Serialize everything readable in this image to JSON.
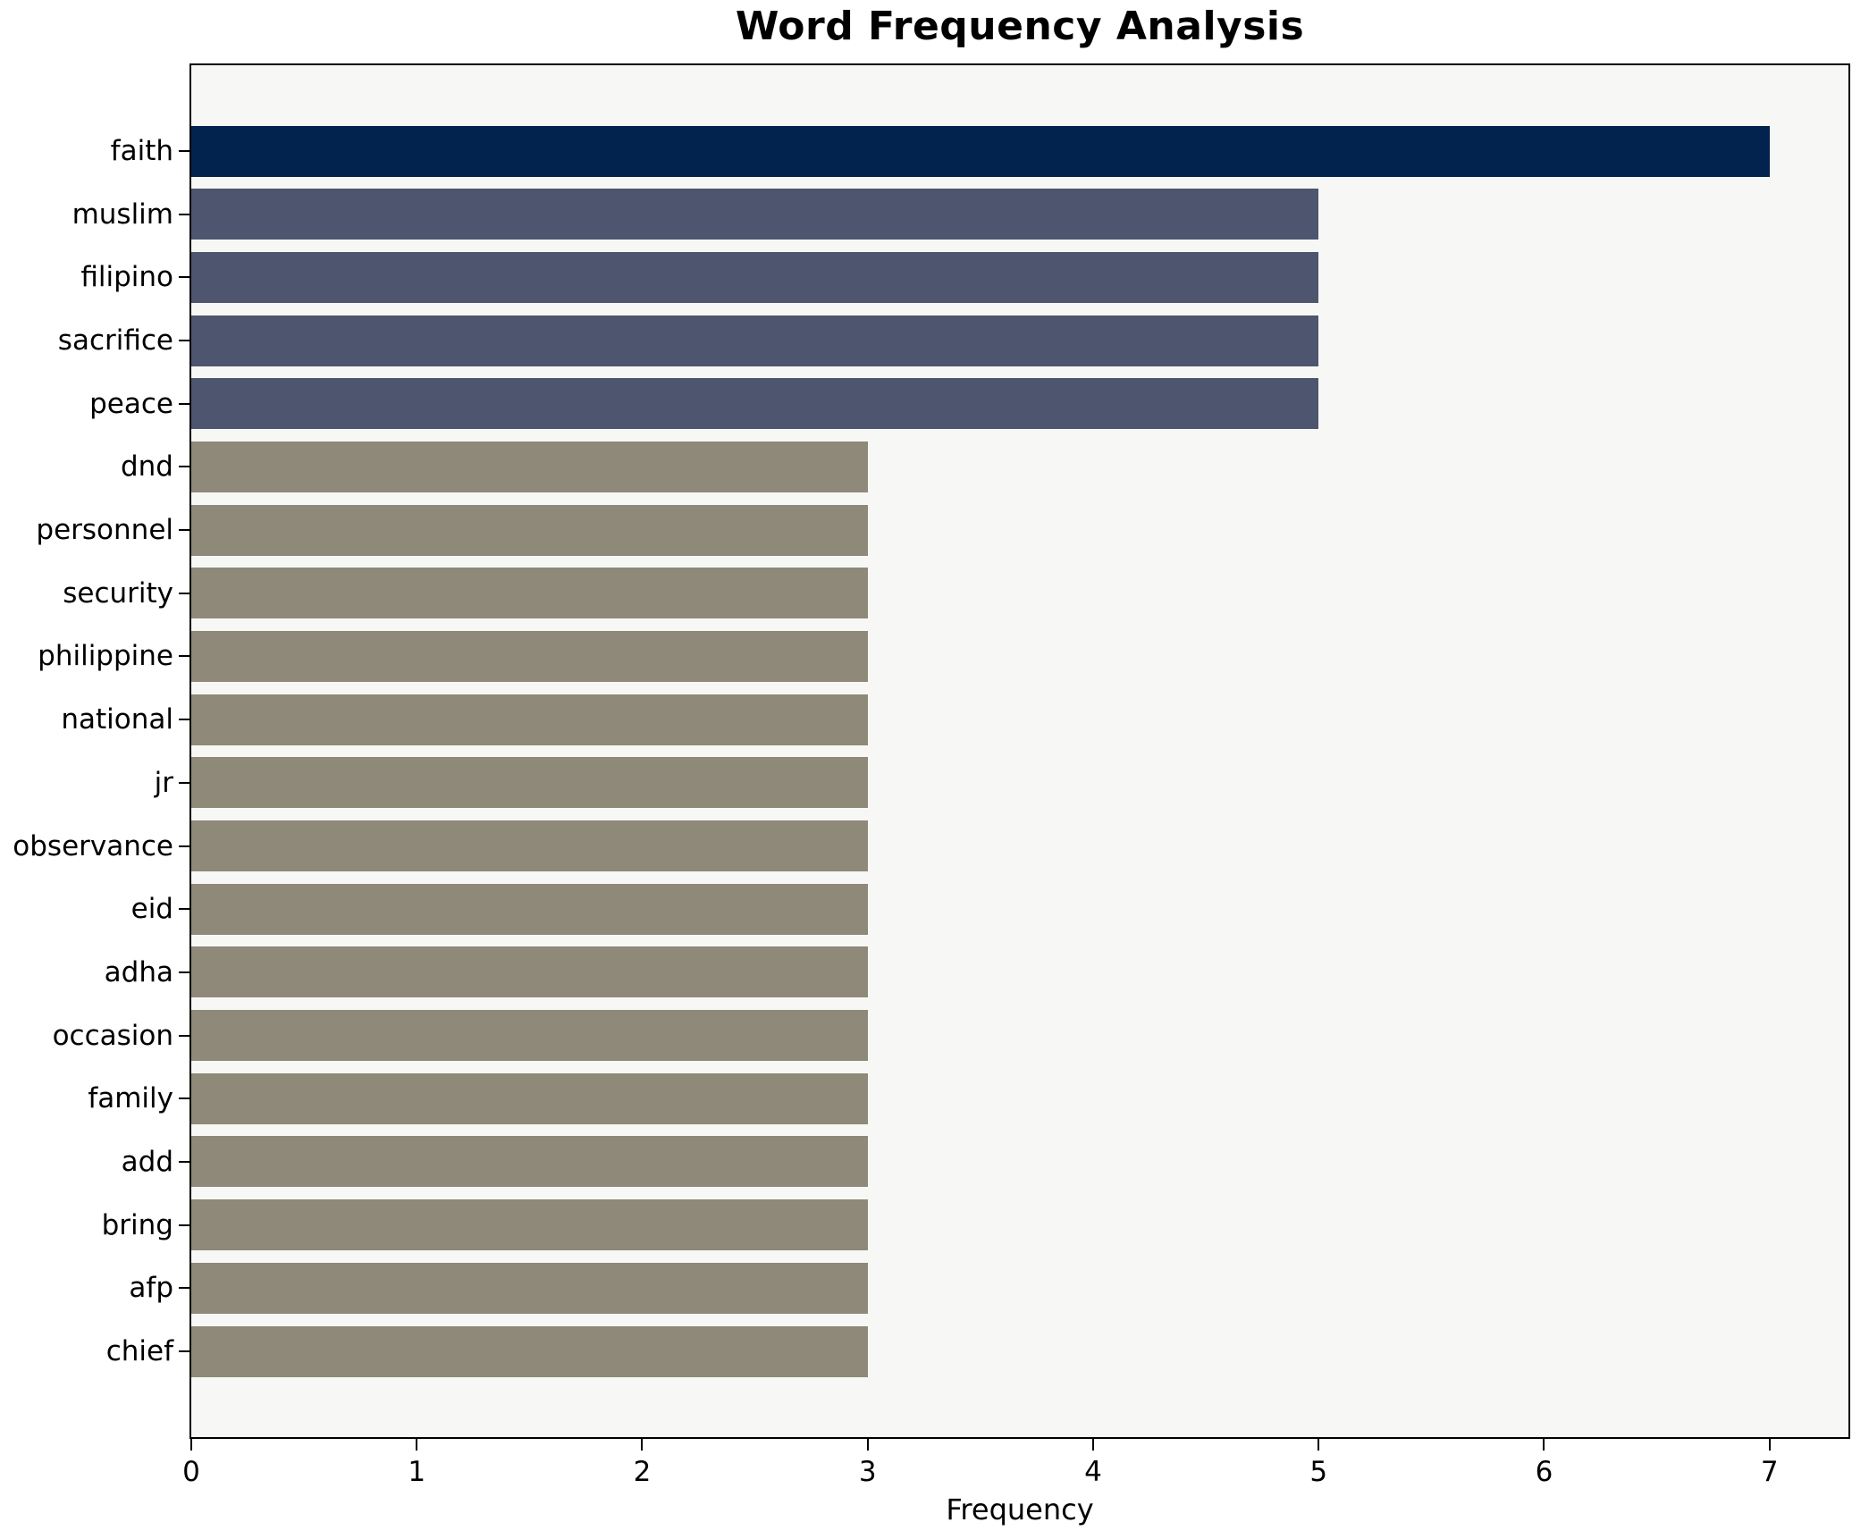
{
  "chart_data": {
    "type": "bar",
    "orientation": "horizontal",
    "title": "Word Frequency Analysis",
    "xlabel": "Frequency",
    "ylabel": "",
    "categories": [
      "faith",
      "muslim",
      "filipino",
      "sacrifice",
      "peace",
      "dnd",
      "personnel",
      "security",
      "philippine",
      "national",
      "jr",
      "observance",
      "eid",
      "adha",
      "occasion",
      "family",
      "add",
      "bring",
      "afp",
      "chief"
    ],
    "values": [
      7,
      5,
      5,
      5,
      5,
      3,
      3,
      3,
      3,
      3,
      3,
      3,
      3,
      3,
      3,
      3,
      3,
      3,
      3,
      3
    ],
    "bar_colors": [
      "#01234e",
      "#4d566e",
      "#4d566e",
      "#4d566e",
      "#4d566e",
      "#8e8978",
      "#8e8978",
      "#8e8978",
      "#8e8978",
      "#8e8978",
      "#8e8978",
      "#8e8978",
      "#8e8978",
      "#8e8978",
      "#8e8978",
      "#8e8978",
      "#8e8978",
      "#8e8978",
      "#8e8978",
      "#8e8978"
    ],
    "xlim": [
      0,
      7.35
    ],
    "xticks": [
      0,
      1,
      2,
      3,
      4,
      5,
      6,
      7
    ],
    "grid": false,
    "legend": null,
    "layout_hints": {
      "plot_background": "#f7f7f5",
      "figure_background": "#ffffff",
      "spine_color": "#000000",
      "text_color": "#000000",
      "legend_position": "none"
    }
  }
}
